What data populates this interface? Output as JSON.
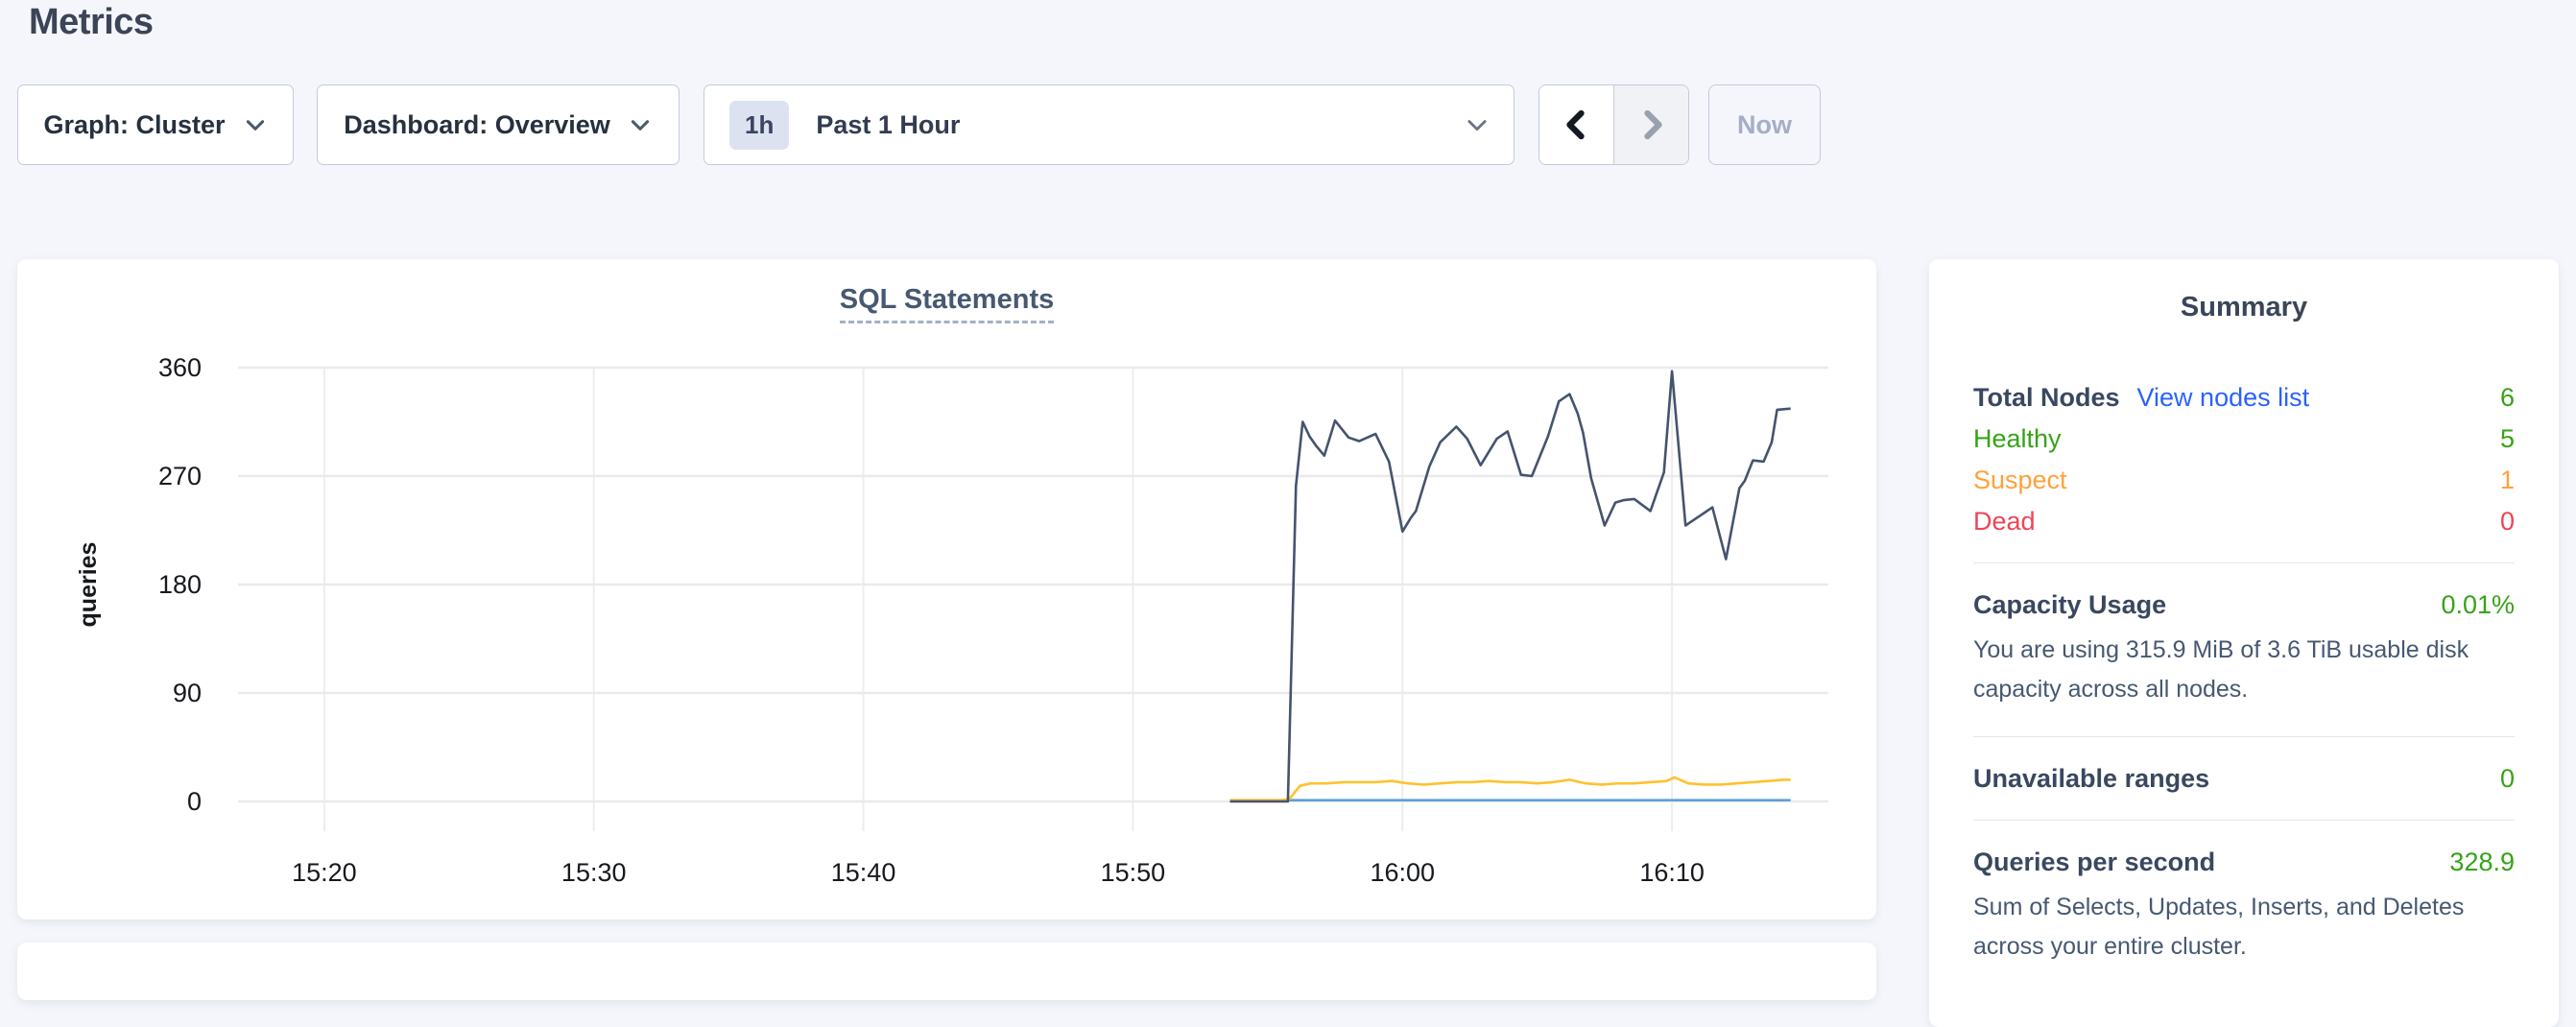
{
  "page": {
    "title": "Metrics"
  },
  "toolbar": {
    "graph_dropdown_label": "Graph: Cluster",
    "dashboard_dropdown_label": "Dashboard: Overview",
    "time_window": {
      "badge": "1h",
      "label": "Past 1 Hour"
    },
    "now_button_label": "Now"
  },
  "icons": {
    "chevron_down": "chevron-down (css/svg angle)",
    "chevron_left": "chevron-left (enabled, black)",
    "chevron_right": "chevron-right (disabled, gray)"
  },
  "colors": {
    "page_background": "#f4f6fb",
    "link_blue": "#2962ff",
    "healthy_green": "#36a317",
    "suspect_orange": "#ffa23a",
    "dead_red": "#ef4456",
    "series_navy": "#46536e",
    "series_yellow": "#fcc32e",
    "series_blue": "#5da0d6",
    "grid_gray": "#e9eaee"
  },
  "chart_data": {
    "type": "line",
    "title": "SQL Statements",
    "ylabel": "queries",
    "x_unit": "minutes after 15:00",
    "x_domain": [
      16.8,
      75.8
    ],
    "ylim": [
      0,
      360
    ],
    "grid": true,
    "legend_position": "none (no legend visible)",
    "yticks": [
      0,
      90,
      180,
      270,
      360
    ],
    "xticks": [
      {
        "label": "15:20",
        "t": 20
      },
      {
        "label": "15:30",
        "t": 30
      },
      {
        "label": "15:40",
        "t": 40
      },
      {
        "label": "15:50",
        "t": 50
      },
      {
        "label": "16:00",
        "t": 60
      },
      {
        "label": "16:10",
        "t": 70
      }
    ],
    "series": [
      {
        "name": "blue",
        "color": "#5da0d6",
        "points": [
          [
            53.6,
            1
          ],
          [
            56,
            1
          ],
          [
            58,
            1
          ],
          [
            60,
            1
          ],
          [
            62,
            1
          ],
          [
            64,
            1
          ],
          [
            66,
            1
          ],
          [
            68,
            1
          ],
          [
            70,
            1
          ],
          [
            72,
            1
          ],
          [
            74.4,
            1
          ]
        ]
      },
      {
        "name": "yellow",
        "color": "#fcc32e",
        "points": [
          [
            53.6,
            1
          ],
          [
            54.5,
            1
          ],
          [
            55.5,
            1
          ],
          [
            55.8,
            2
          ],
          [
            56.2,
            13
          ],
          [
            56.6,
            15
          ],
          [
            57.2,
            15
          ],
          [
            57.8,
            16
          ],
          [
            58.4,
            16
          ],
          [
            59.0,
            16
          ],
          [
            59.6,
            17
          ],
          [
            60.2,
            15
          ],
          [
            60.8,
            14
          ],
          [
            61.4,
            15
          ],
          [
            62.0,
            16
          ],
          [
            62.6,
            16
          ],
          [
            63.2,
            17
          ],
          [
            63.8,
            16
          ],
          [
            64.4,
            16
          ],
          [
            65.0,
            15
          ],
          [
            65.6,
            16
          ],
          [
            66.2,
            18
          ],
          [
            66.8,
            15
          ],
          [
            67.4,
            14
          ],
          [
            68.0,
            15
          ],
          [
            68.6,
            15
          ],
          [
            69.2,
            16
          ],
          [
            69.8,
            17
          ],
          [
            70.1,
            20
          ],
          [
            70.6,
            15
          ],
          [
            71.2,
            14
          ],
          [
            71.8,
            14
          ],
          [
            72.4,
            15
          ],
          [
            73.0,
            16
          ],
          [
            73.6,
            17
          ],
          [
            74.1,
            18
          ],
          [
            74.4,
            18
          ]
        ]
      },
      {
        "name": "navy",
        "color": "#46536e",
        "points": [
          [
            53.6,
            0
          ],
          [
            54.3,
            0
          ],
          [
            55.0,
            0
          ],
          [
            55.75,
            0
          ],
          [
            56.05,
            262
          ],
          [
            56.3,
            315
          ],
          [
            56.55,
            303
          ],
          [
            56.8,
            295
          ],
          [
            57.1,
            287
          ],
          [
            57.5,
            316
          ],
          [
            58.0,
            302
          ],
          [
            58.4,
            299
          ],
          [
            59.0,
            305
          ],
          [
            59.5,
            282
          ],
          [
            60.0,
            224
          ],
          [
            60.3,
            235
          ],
          [
            60.5,
            241
          ],
          [
            61.0,
            278
          ],
          [
            61.4,
            298
          ],
          [
            62.0,
            311
          ],
          [
            62.4,
            301
          ],
          [
            62.9,
            279
          ],
          [
            63.5,
            301
          ],
          [
            63.9,
            307
          ],
          [
            64.4,
            271
          ],
          [
            64.8,
            270
          ],
          [
            65.4,
            303
          ],
          [
            65.8,
            332
          ],
          [
            66.2,
            338
          ],
          [
            66.5,
            322
          ],
          [
            66.7,
            306
          ],
          [
            67.0,
            268
          ],
          [
            67.5,
            229
          ],
          [
            67.9,
            248
          ],
          [
            68.2,
            250
          ],
          [
            68.6,
            251
          ],
          [
            69.2,
            241
          ],
          [
            69.7,
            273
          ],
          [
            70.0,
            357
          ],
          [
            70.5,
            229
          ],
          [
            70.7,
            232
          ],
          [
            71.1,
            238
          ],
          [
            71.5,
            244
          ],
          [
            72.0,
            201
          ],
          [
            72.5,
            260
          ],
          [
            72.7,
            266
          ],
          [
            73.0,
            283
          ],
          [
            73.4,
            282
          ],
          [
            73.7,
            298
          ],
          [
            73.9,
            325
          ],
          [
            74.4,
            326
          ]
        ]
      }
    ]
  },
  "summary": {
    "title": "Summary",
    "nodes": {
      "label": "Total Nodes",
      "link": "View nodes list",
      "value": "6",
      "statuses": [
        {
          "label": "Healthy",
          "value": "5"
        },
        {
          "label": "Suspect",
          "value": "1"
        },
        {
          "label": "Dead",
          "value": "0"
        }
      ]
    },
    "capacity": {
      "label": "Capacity Usage",
      "value": "0.01%",
      "description": "You are using 315.9 MiB of 3.6 TiB usable disk capacity across all nodes."
    },
    "unavailable_ranges": {
      "label": "Unavailable ranges",
      "value": "0"
    },
    "qps": {
      "label": "Queries per second",
      "value": "328.9",
      "description": "Sum of Selects, Updates, Inserts, and Deletes across your entire cluster."
    }
  }
}
